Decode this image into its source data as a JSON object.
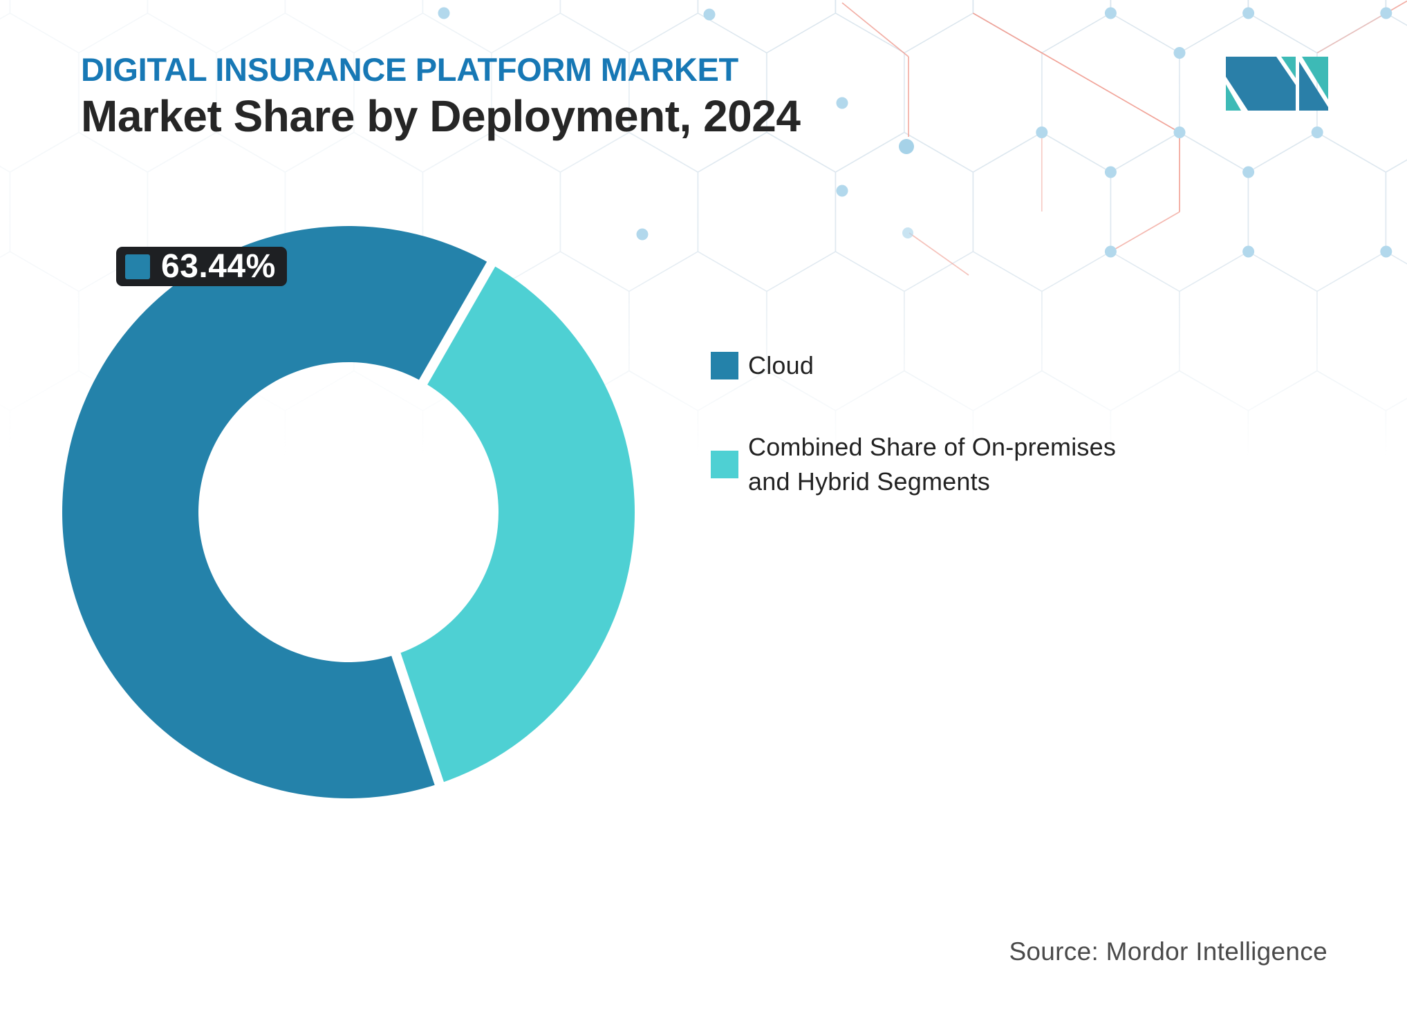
{
  "header": {
    "title": "DIGITAL INSURANCE PLATFORM MARKET",
    "subtitle": "Market Share by Deployment, 2024"
  },
  "chart_data": {
    "type": "pie",
    "subtype": "donut",
    "title": "Market Share by Deployment, 2024",
    "segments": [
      {
        "label": "Cloud",
        "value": 63.44,
        "color": "#2482aa"
      },
      {
        "label": "Combined Share of On-premises and Hybrid Segments",
        "value": 36.56,
        "color": "#4ed0d3"
      }
    ],
    "callout": {
      "text": "63.44%",
      "segment": "Cloud"
    },
    "layout": {
      "start_angle_deg": 161.5,
      "inner_radius_ratio": 0.524,
      "separator_color": "#ffffff",
      "legend_position": "right"
    }
  },
  "footer": {
    "source_label": "Source: Mordor Intelligence"
  },
  "brand": {
    "name": "mordor-intelligence",
    "logo_blue": "#2a7fa8",
    "logo_teal": "#3dbab6"
  },
  "theme": {
    "accent_blue": "#1778b5",
    "text_dark": "#262626",
    "callout_bg": "#1e2023",
    "callout_text": "#ffffff",
    "source_text": "#4a4a4a",
    "pattern_line": "#d7e3ec",
    "pattern_accent": "#ef9a8e",
    "pattern_dot": "#b2d8ec"
  }
}
